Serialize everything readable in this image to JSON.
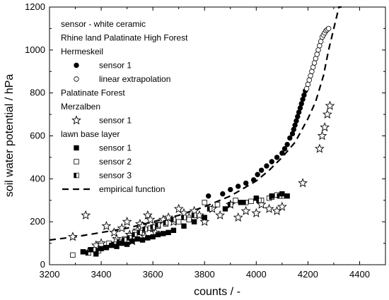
{
  "chart_data": {
    "type": "scatter",
    "xlabel": "counts / -",
    "ylabel": "soil water potential / hPa",
    "xlim": [
      3200,
      4500
    ],
    "ylim": [
      0,
      1200
    ],
    "xticks": [
      3200,
      3400,
      3600,
      3800,
      4000,
      4200,
      4400
    ],
    "yticks": [
      0,
      200,
      400,
      600,
      800,
      1000,
      1200
    ],
    "legend_placement": "top-left",
    "legend": [
      {
        "text": "sensor - white ceramic",
        "kind": "heading"
      },
      {
        "text": "Rhine land Palatinate High Forest",
        "kind": "heading"
      },
      {
        "text": "Hermeskeil",
        "kind": "heading"
      },
      {
        "text": "sensor 1",
        "kind": "series",
        "series": 0
      },
      {
        "text": "linear extrapolation",
        "kind": "series",
        "series": 1
      },
      {
        "text": "Palatinate Forest",
        "kind": "heading"
      },
      {
        "text": "Merzalben",
        "kind": "heading"
      },
      {
        "text": "sensor 1",
        "kind": "series",
        "series": 2
      },
      {
        "text": "lawn base layer",
        "kind": "heading"
      },
      {
        "text": "sensor 1",
        "kind": "series",
        "series": 3
      },
      {
        "text": "sensor 2",
        "kind": "series",
        "series": 4
      },
      {
        "text": "sensor 3",
        "kind": "series",
        "series": 5
      },
      {
        "text": "empirical function",
        "kind": "series",
        "series": 6
      }
    ],
    "series": [
      {
        "name": "sensor 1",
        "group": "Hermeskeil",
        "marker": "filled-circle",
        "x": [
          3815,
          3870,
          3900,
          3930,
          3960,
          3990,
          4005,
          4020,
          4040,
          4060,
          4080,
          4100,
          4110,
          4120,
          4130,
          4140,
          4145,
          4150,
          4155,
          4160,
          4165,
          4170,
          4175,
          4180,
          4185,
          4190
        ],
        "y": [
          320,
          330,
          350,
          365,
          380,
          395,
          420,
          440,
          460,
          480,
          500,
          520,
          540,
          560,
          590,
          610,
          630,
          650,
          670,
          690,
          710,
          730,
          750,
          770,
          790,
          810
        ]
      },
      {
        "name": "linear extrapolation",
        "group": "Hermeskeil",
        "marker": "open-circle",
        "x": [
          4195,
          4200,
          4205,
          4210,
          4215,
          4220,
          4225,
          4230,
          4235,
          4240,
          4245,
          4250,
          4255,
          4260,
          4265,
          4270,
          4275,
          4280
        ],
        "y": [
          820,
          840,
          860,
          880,
          900,
          920,
          940,
          960,
          980,
          1000,
          1020,
          1040,
          1060,
          1070,
          1080,
          1090,
          1095,
          1100
        ]
      },
      {
        "name": "sensor 1",
        "group": "Merzalben",
        "marker": "star",
        "x": [
          3290,
          3340,
          3350,
          3380,
          3400,
          3420,
          3450,
          3460,
          3480,
          3500,
          3510,
          3520,
          3540,
          3550,
          3560,
          3570,
          3580,
          3590,
          3600,
          3610,
          3620,
          3640,
          3660,
          3680,
          3700,
          3720,
          3740,
          3760,
          3780,
          3800,
          3830,
          3860,
          3900,
          3930,
          3960,
          4000,
          4020,
          4050,
          4080,
          4100,
          4180,
          4245,
          4255,
          4265,
          4275,
          4285
        ],
        "y": [
          130,
          230,
          60,
          90,
          100,
          180,
          150,
          120,
          170,
          200,
          140,
          110,
          160,
          190,
          180,
          130,
          230,
          210,
          170,
          150,
          190,
          210,
          220,
          200,
          260,
          240,
          220,
          250,
          230,
          200,
          260,
          230,
          280,
          220,
          250,
          240,
          280,
          260,
          250,
          270,
          380,
          540,
          600,
          640,
          700,
          740
        ]
      },
      {
        "name": "sensor 1",
        "group": "lawn base layer",
        "marker": "filled-square",
        "x": [
          3330,
          3360,
          3380,
          3400,
          3420,
          3440,
          3460,
          3480,
          3500,
          3520,
          3540,
          3560,
          3580,
          3600,
          3620,
          3640,
          3660,
          3680,
          3720,
          3760,
          3800,
          3880,
          3940,
          4000,
          4060,
          4100,
          4120
        ],
        "y": [
          60,
          70,
          50,
          75,
          80,
          90,
          85,
          100,
          95,
          110,
          120,
          115,
          125,
          130,
          140,
          145,
          150,
          160,
          180,
          200,
          220,
          260,
          290,
          310,
          320,
          330,
          320
        ]
      },
      {
        "name": "sensor 2",
        "group": "lawn base layer",
        "marker": "open-square",
        "x": [
          3290,
          3330,
          3370,
          3400,
          3430,
          3460,
          3490,
          3510,
          3530,
          3560,
          3590,
          3620,
          3650,
          3700,
          3740,
          3800,
          3850,
          3920,
          3980,
          4020,
          4050,
          4080,
          4100
        ],
        "y": [
          45,
          60,
          70,
          90,
          100,
          110,
          120,
          135,
          150,
          160,
          170,
          180,
          190,
          200,
          210,
          290,
          280,
          300,
          295,
          300,
          310,
          325,
          320
        ]
      },
      {
        "name": "sensor 3",
        "group": "lawn base layer",
        "marker": "half-square",
        "x": [
          3350,
          3390,
          3420,
          3450,
          3470,
          3490,
          3510,
          3530,
          3550,
          3570,
          3600,
          3620,
          3650,
          3680,
          3720,
          3760,
          3820,
          3900,
          3960,
          4010,
          4060,
          4090
        ],
        "y": [
          55,
          65,
          80,
          95,
          105,
          115,
          125,
          140,
          150,
          165,
          175,
          185,
          195,
          210,
          220,
          230,
          260,
          280,
          290,
          300,
          315,
          320
        ]
      },
      {
        "name": "empirical function",
        "group": "",
        "marker": "dashed-line",
        "x": [
          3200,
          3300,
          3400,
          3500,
          3600,
          3700,
          3800,
          3900,
          4000,
          4050,
          4100,
          4150,
          4200,
          4230,
          4260,
          4280,
          4300,
          4320,
          4330
        ],
        "y": [
          115,
          130,
          150,
          170,
          200,
          230,
          270,
          320,
          390,
          440,
          500,
          570,
          680,
          760,
          880,
          1000,
          1100,
          1200,
          1250
        ]
      }
    ]
  }
}
